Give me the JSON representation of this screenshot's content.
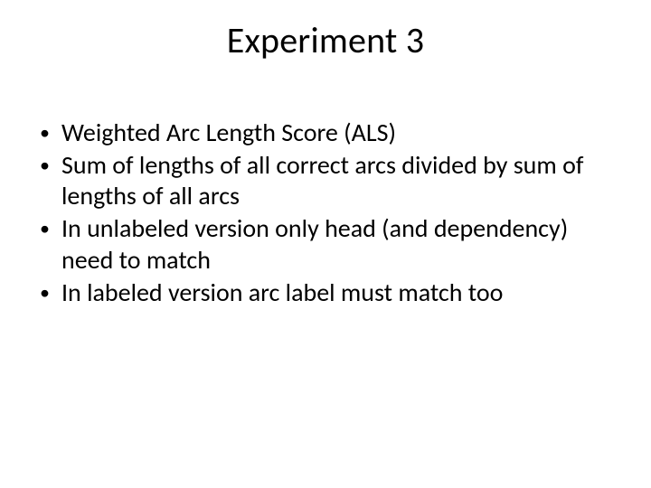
{
  "slide": {
    "title": "Experiment 3",
    "title_fontsize": 40,
    "title_color": "#000000",
    "body_fontsize": 28,
    "body_color": "#000000",
    "background_color": "#ffffff",
    "bullets": [
      "Weighted Arc Length Score (ALS)",
      "Sum of lengths of all correct arcs divided by sum of lengths of all arcs",
      "In unlabeled version only head (and dependency) need to match",
      "In labeled version arc label must match too"
    ]
  }
}
